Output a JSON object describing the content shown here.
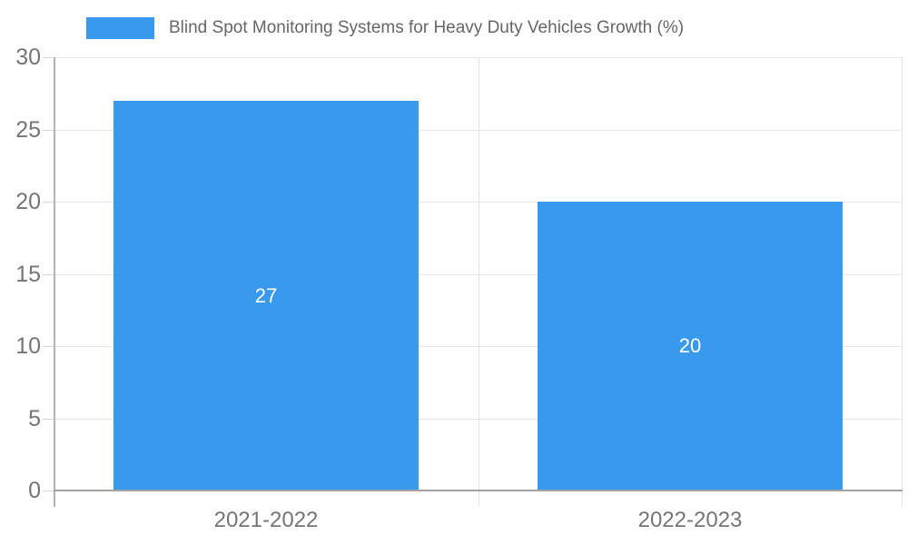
{
  "chart_data": {
    "type": "bar",
    "title": "",
    "xlabel": "",
    "ylabel": "",
    "categories": [
      "2021-2022",
      "2022-2023"
    ],
    "series": [
      {
        "name": "Blind Spot Monitoring Systems for Heavy Duty Vehicles Growth (%)",
        "values": [
          27,
          20
        ]
      }
    ],
    "data_labels": [
      "27",
      "20"
    ],
    "ylim": [
      0,
      30
    ],
    "yticks": [
      "0",
      "5",
      "10",
      "15",
      "20",
      "25",
      "30"
    ],
    "grid": true,
    "legend_position": "top-left",
    "colors": {
      "bar": "#3999ec",
      "data_label": "#ffffff",
      "axis_label": "#757575",
      "legend_text": "#666666",
      "gridline": "#e6e6e6",
      "divider": "#e2e2e2",
      "tick": "#d6d6d6",
      "y_axis_line": "#b3b3b3",
      "x_axis_line": "#a3a3a3"
    }
  }
}
